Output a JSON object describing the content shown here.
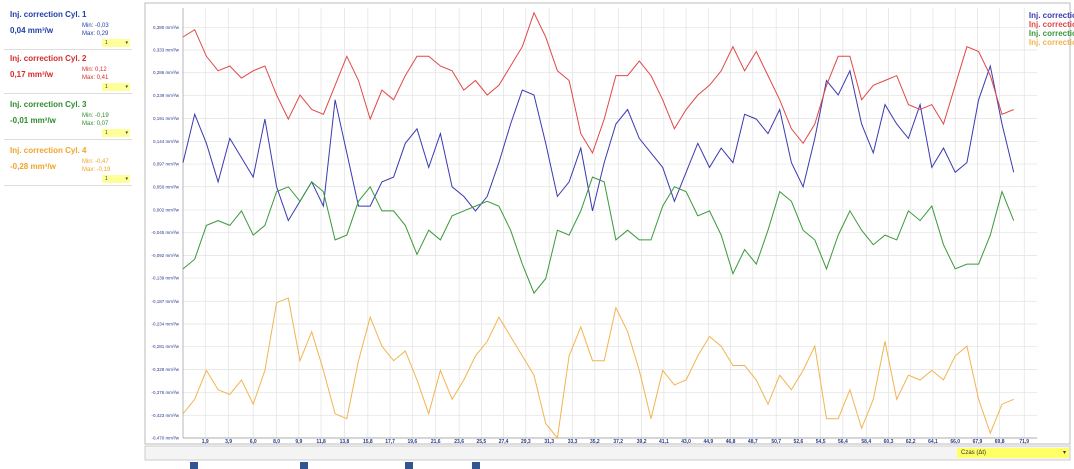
{
  "panels": [
    {
      "title": "Inj. correction Cyl. 1",
      "value": "0,04 mm³/w",
      "min": "Min: -0,03",
      "max": "Max: 0,29",
      "select": "1",
      "color": "#1f3fa6"
    },
    {
      "title": "Inj. correction Cyl. 2",
      "value": "0,17 mm³/w",
      "min": "Min: 0,12",
      "max": "Max: 0,41",
      "select": "1",
      "color": "#d42a2a"
    },
    {
      "title": "Inj. correction Cyl. 3",
      "value": "-0,01 mm³/w",
      "min": "Min: -0,19",
      "max": "Max: 0,07",
      "select": "1",
      "color": "#2e8b2e"
    },
    {
      "title": "Inj. correction Cyl. 4",
      "value": "-0,28 mm³/w",
      "min": "Min: -0,47",
      "max": "Max: -0,19",
      "select": "1",
      "color": "#f0a428"
    }
  ],
  "time_select": "Czas (Δt)",
  "chart_data": {
    "type": "line",
    "x": [
      0,
      1,
      2,
      3,
      4,
      5,
      6,
      7,
      8,
      9,
      10,
      11,
      12,
      13,
      14,
      15,
      16,
      17,
      18,
      19,
      20,
      21,
      22,
      23,
      24,
      25,
      26,
      27,
      28,
      29,
      30,
      31,
      32,
      33,
      34,
      35,
      36,
      37,
      38,
      39,
      40,
      41,
      42,
      43,
      44,
      45,
      46,
      47,
      48,
      49,
      50,
      51,
      52,
      53,
      54,
      55,
      56,
      57,
      58,
      59,
      60,
      61,
      62,
      63,
      64,
      65,
      66,
      67,
      68,
      69,
      70,
      71
    ],
    "series": [
      {
        "name": "Inj. correction Cyl. 1",
        "color": "#3a3ab0",
        "values": [
          0.1,
          0.2,
          0.14,
          0.06,
          0.15,
          0.11,
          0.07,
          0.19,
          0.05,
          -0.02,
          0.02,
          0.06,
          0.01,
          0.23,
          0.12,
          0.01,
          0.01,
          0.06,
          0.07,
          0.14,
          0.17,
          0.09,
          0.16,
          0.05,
          0.03,
          0.0,
          0.03,
          0.1,
          0.18,
          0.25,
          0.24,
          0.14,
          0.03,
          0.06,
          0.13,
          0.0,
          0.1,
          0.18,
          0.21,
          0.15,
          0.12,
          0.09,
          0.02,
          0.08,
          0.14,
          0.09,
          0.13,
          0.1,
          0.2,
          0.19,
          0.16,
          0.21,
          0.1,
          0.05,
          0.15,
          0.27,
          0.24,
          0.29,
          0.18,
          0.12,
          0.22,
          0.18,
          0.15,
          0.22,
          0.09,
          0.13,
          0.08,
          0.1,
          0.23,
          0.3,
          0.18,
          0.08
        ]
      },
      {
        "name": "Inj. correction Cyl. 2",
        "color": "#e04848",
        "values": [
          0.36,
          0.375,
          0.32,
          0.29,
          0.3,
          0.275,
          0.29,
          0.3,
          0.24,
          0.19,
          0.24,
          0.21,
          0.2,
          0.26,
          0.32,
          0.27,
          0.19,
          0.25,
          0.23,
          0.28,
          0.32,
          0.32,
          0.3,
          0.29,
          0.25,
          0.27,
          0.24,
          0.26,
          0.3,
          0.34,
          0.41,
          0.36,
          0.29,
          0.27,
          0.16,
          0.12,
          0.19,
          0.28,
          0.28,
          0.31,
          0.28,
          0.23,
          0.17,
          0.21,
          0.24,
          0.26,
          0.29,
          0.34,
          0.29,
          0.33,
          0.28,
          0.23,
          0.17,
          0.14,
          0.18,
          0.26,
          0.32,
          0.32,
          0.23,
          0.26,
          0.27,
          0.28,
          0.22,
          0.21,
          0.22,
          0.18,
          0.26,
          0.34,
          0.33,
          0.28,
          0.2,
          0.21
        ]
      },
      {
        "name": "Inj. correction Cyl. 3",
        "color": "#3a9a3a",
        "values": [
          -0.12,
          -0.1,
          -0.03,
          -0.02,
          -0.03,
          0.0,
          -0.05,
          -0.03,
          0.04,
          0.05,
          0.02,
          0.06,
          0.04,
          -0.06,
          -0.05,
          0.02,
          0.05,
          0.0,
          0.0,
          -0.03,
          -0.09,
          -0.04,
          -0.06,
          -0.01,
          0.0,
          0.01,
          0.02,
          0.01,
          -0.04,
          -0.11,
          -0.17,
          -0.14,
          -0.04,
          -0.05,
          0.0,
          0.07,
          0.06,
          -0.06,
          -0.04,
          -0.06,
          -0.06,
          0.01,
          0.05,
          0.04,
          -0.01,
          0.0,
          -0.05,
          -0.13,
          -0.08,
          -0.11,
          -0.04,
          0.04,
          0.02,
          -0.04,
          -0.06,
          -0.12,
          -0.05,
          0.0,
          -0.04,
          -0.07,
          -0.05,
          -0.06,
          0.0,
          -0.02,
          0.01,
          -0.07,
          -0.12,
          -0.11,
          -0.11,
          -0.05,
          0.04,
          -0.02
        ]
      },
      {
        "name": "Inj. correction Cyl. 4",
        "color": "#f2b450",
        "values": [
          -0.42,
          -0.39,
          -0.33,
          -0.37,
          -0.38,
          -0.35,
          -0.4,
          -0.33,
          -0.19,
          -0.18,
          -0.31,
          -0.25,
          -0.33,
          -0.42,
          -0.43,
          -0.31,
          -0.22,
          -0.28,
          -0.31,
          -0.29,
          -0.35,
          -0.42,
          -0.33,
          -0.39,
          -0.35,
          -0.3,
          -0.27,
          -0.22,
          -0.26,
          -0.3,
          -0.34,
          -0.44,
          -0.47,
          -0.3,
          -0.24,
          -0.31,
          -0.31,
          -0.2,
          -0.25,
          -0.33,
          -0.43,
          -0.33,
          -0.36,
          -0.35,
          -0.3,
          -0.26,
          -0.28,
          -0.32,
          -0.32,
          -0.35,
          -0.4,
          -0.34,
          -0.37,
          -0.33,
          -0.28,
          -0.43,
          -0.43,
          -0.37,
          -0.45,
          -0.39,
          -0.27,
          -0.39,
          -0.34,
          -0.35,
          -0.33,
          -0.35,
          -0.3,
          -0.28,
          -0.39,
          -0.46,
          -0.4,
          -0.39
        ]
      }
    ],
    "xlim": [
      0,
      73
    ],
    "xticks": [
      {
        "value": 1.9,
        "label": "1,9"
      },
      {
        "value": 3.9,
        "label": "3,9"
      },
      {
        "value": 6.0,
        "label": "6,0"
      },
      {
        "value": 8.0,
        "label": "8,0"
      },
      {
        "value": 9.9,
        "label": "9,9"
      },
      {
        "value": 11.8,
        "label": "11,8"
      },
      {
        "value": 13.8,
        "label": "13,8"
      },
      {
        "value": 15.8,
        "label": "15,8"
      },
      {
        "value": 17.7,
        "label": "17,7"
      },
      {
        "value": 19.6,
        "label": "19,6"
      },
      {
        "value": 21.6,
        "label": "21,6"
      },
      {
        "value": 23.6,
        "label": "23,6"
      },
      {
        "value": 25.5,
        "label": "25,5"
      },
      {
        "value": 27.4,
        "label": "27,4"
      },
      {
        "value": 29.3,
        "label": "29,3"
      },
      {
        "value": 31.3,
        "label": "31,3"
      },
      {
        "value": 33.3,
        "label": "33,3"
      },
      {
        "value": 35.2,
        "label": "35,2"
      },
      {
        "value": 37.2,
        "label": "37,2"
      },
      {
        "value": 39.2,
        "label": "39,2"
      },
      {
        "value": 41.1,
        "label": "41,1"
      },
      {
        "value": 43.0,
        "label": "43,0"
      },
      {
        "value": 44.9,
        "label": "44,9"
      },
      {
        "value": 46.8,
        "label": "46,8"
      },
      {
        "value": 48.7,
        "label": "48,7"
      },
      {
        "value": 50.7,
        "label": "50,7"
      },
      {
        "value": 52.6,
        "label": "52,6"
      },
      {
        "value": 54.5,
        "label": "54,5"
      },
      {
        "value": 56.4,
        "label": "56,4"
      },
      {
        "value": 58.4,
        "label": "58,4"
      },
      {
        "value": 60.3,
        "label": "60,3"
      },
      {
        "value": 62.2,
        "label": "62,2"
      },
      {
        "value": 64.1,
        "label": "64,1"
      },
      {
        "value": 66.0,
        "label": "66,0"
      },
      {
        "value": 67.9,
        "label": "67,9"
      },
      {
        "value": 69.8,
        "label": "69,8"
      },
      {
        "value": 71.9,
        "label": "71,9"
      }
    ],
    "ylim": [
      -0.47,
      0.42
    ],
    "yticks": [
      {
        "value": 0.38,
        "label": "0,380 mm³/w"
      },
      {
        "value": 0.333,
        "label": "0,333 mm³/w"
      },
      {
        "value": 0.286,
        "label": "0,286 mm³/w"
      },
      {
        "value": 0.239,
        "label": "0,239 mm³/w"
      },
      {
        "value": 0.191,
        "label": "0,191 mm³/w"
      },
      {
        "value": 0.144,
        "label": "0,144 mm³/w"
      },
      {
        "value": 0.097,
        "label": "0,097 mm³/w"
      },
      {
        "value": 0.05,
        "label": "0,050 mm³/w"
      },
      {
        "value": 0.002,
        "label": "0,002 mm³/w"
      },
      {
        "value": -0.045,
        "label": "-0,045 mm³/w"
      },
      {
        "value": -0.092,
        "label": "-0,092 mm³/w"
      },
      {
        "value": -0.139,
        "label": "-0,139 mm³/w"
      },
      {
        "value": -0.187,
        "label": "-0,187 mm³/w"
      },
      {
        "value": -0.234,
        "label": "-0,234 mm³/w"
      },
      {
        "value": -0.281,
        "label": "-0,281 mm³/w"
      },
      {
        "value": -0.328,
        "label": "-0,328 mm³/w"
      },
      {
        "value": -0.376,
        "label": "-0,376 mm³/w"
      },
      {
        "value": -0.423,
        "label": "-0,423 mm³/w"
      },
      {
        "value": -0.47,
        "label": "-0,470 mm³/w"
      }
    ],
    "grid": true,
    "legend": "top-right"
  }
}
